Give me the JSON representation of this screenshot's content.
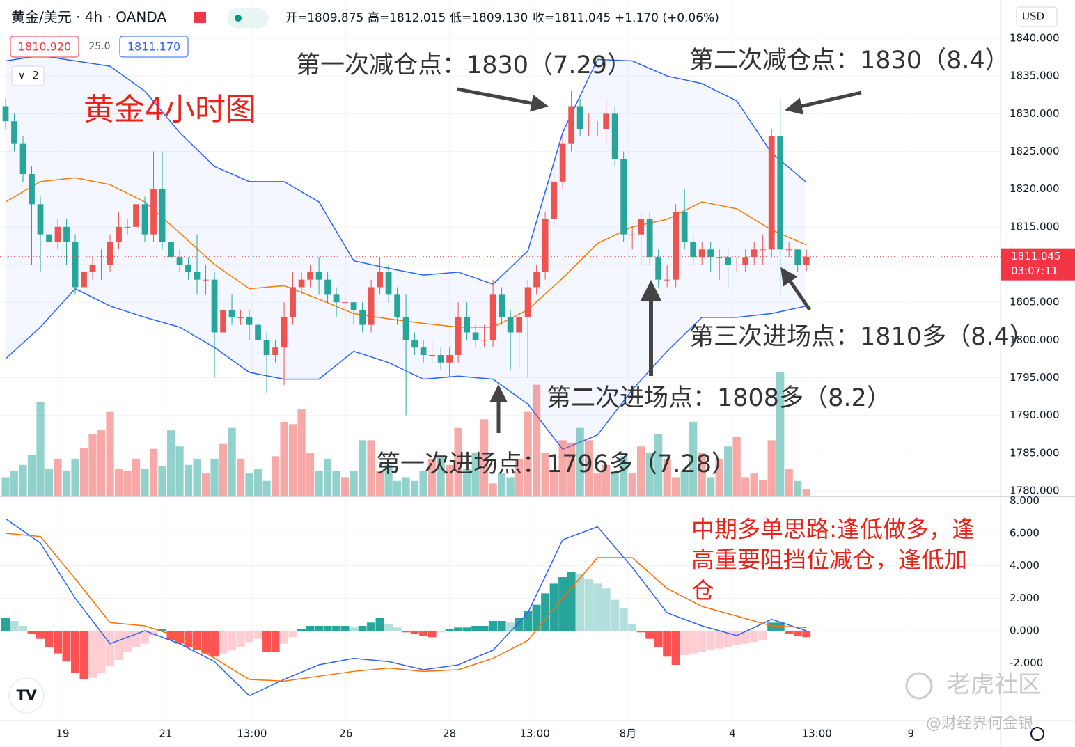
{
  "header": {
    "symbol": "黄金/美元 · 4h · OANDA",
    "ohlc": [
      "开=1809.875",
      "高=1812.015",
      "低=1809.130",
      "收=1811.045",
      "+1.170 (+0.06%)"
    ],
    "bid": "1810.920",
    "spread": "25.0",
    "ask": "1811.170",
    "indicators_count": "2",
    "currency": "USD",
    "countdown": "03:07:11",
    "watermark": "老虎社区",
    "author": "@财经界何金银"
  },
  "chart_data": [
    {
      "type": "candlestick",
      "title": "黄金4小时图",
      "xlim": [
        -0.64,
        114.3
      ],
      "xticks": [
        {
          "value": 6.56,
          "label": "19"
        },
        {
          "value": 18.4,
          "label": "21"
        },
        {
          "value": 28.3,
          "label": "13:00"
        },
        {
          "value": 39.1,
          "label": "26"
        },
        {
          "value": 51,
          "label": "28"
        },
        {
          "value": 60.8,
          "label": "13:00"
        },
        {
          "value": 71.5,
          "label": "8月"
        },
        {
          "value": 83.5,
          "label": "4"
        },
        {
          "value": 93.2,
          "label": "13:00"
        },
        {
          "value": 104,
          "label": "9"
        }
      ],
      "ylim": [
        1779.35,
        1845.08
      ],
      "yticks": [
        {
          "value": 1840,
          "label": "1840.000"
        },
        {
          "value": 1835,
          "label": "1835.000"
        },
        {
          "value": 1830,
          "label": "1830.000"
        },
        {
          "value": 1825,
          "label": "1825.000"
        },
        {
          "value": 1820,
          "label": "1820.000"
        },
        {
          "value": 1815,
          "label": "1815.000"
        },
        {
          "value": 1810,
          "label": "1810.000"
        },
        {
          "value": 1805,
          "label": "1805.000"
        },
        {
          "value": 1800,
          "label": "1800.000"
        },
        {
          "value": 1795,
          "label": "1795.000"
        },
        {
          "value": 1790,
          "label": "1790.000"
        },
        {
          "value": 1785,
          "label": "1785.000"
        },
        {
          "value": 1780,
          "label": "1780.000"
        }
      ],
      "grid": true,
      "up_color": "#ef5350",
      "down_color": "#26a69a",
      "last_price": 1811.045,
      "open": [
        1831,
        1829,
        1826,
        1822,
        1818,
        1814,
        1813,
        1815,
        1813,
        1807,
        1809,
        1810,
        1810,
        1813,
        1815,
        1815,
        1818,
        1814,
        1820,
        1813,
        1811,
        1810,
        1809,
        1808,
        1808,
        1801,
        1804,
        1803,
        1803,
        1802,
        1800,
        1798,
        1799,
        1803,
        1807,
        1808,
        1809,
        1808,
        1806,
        1805,
        1805,
        1804,
        1802,
        1807,
        1809,
        1806,
        1803,
        1800,
        1799,
        1798,
        1798,
        1797,
        1798,
        1803,
        1801,
        1800,
        1800,
        1806,
        1803,
        1801,
        1803,
        1807,
        1809,
        1816,
        1821,
        1826,
        1831,
        1828,
        1828,
        1828,
        1830,
        1824,
        1814,
        1814,
        1816,
        1811,
        1808,
        1808,
        1817,
        1813,
        1811,
        1812,
        1811,
        1811,
        1810,
        1810,
        1811,
        1812,
        1812,
        1827,
        1812,
        1812,
        1810
      ],
      "high": [
        1832,
        1830,
        1827,
        1823,
        1819,
        1815,
        1816,
        1816,
        1814,
        1810,
        1811,
        1812,
        1814,
        1817,
        1816,
        1820,
        1819,
        1825,
        1825,
        1814,
        1812,
        1811,
        1814,
        1810,
        1809,
        1805,
        1806,
        1804,
        1804,
        1803,
        1801,
        1800,
        1805,
        1809,
        1809,
        1810,
        1811,
        1809,
        1807,
        1806,
        1805,
        1805,
        1808,
        1811,
        1810,
        1807,
        1806,
        1801,
        1800,
        1800,
        1799,
        1799,
        1805,
        1805,
        1802,
        1802,
        1808,
        1807,
        1804,
        1804,
        1808,
        1810,
        1817,
        1822,
        1827,
        1833,
        1832,
        1830,
        1829,
        1832,
        1831,
        1825,
        1815,
        1817,
        1817,
        1812,
        1810,
        1818,
        1820,
        1814,
        1813,
        1813,
        1812,
        1812,
        1811,
        1812,
        1813,
        1814,
        1828,
        1832,
        1813,
        1812,
        1812.015
      ],
      "low": [
        1828,
        1825,
        1821,
        1810,
        1809,
        1809,
        1812,
        1810,
        1806,
        1795,
        1808,
        1808,
        1809,
        1812,
        1814,
        1814,
        1813,
        1813,
        1812,
        1810,
        1809,
        1808,
        1806,
        1806,
        1795,
        1800,
        1802,
        1802,
        1800,
        1798,
        1793,
        1797,
        1794,
        1802,
        1806,
        1807,
        1806,
        1805,
        1803,
        1803,
        1802,
        1801,
        1801,
        1806,
        1805,
        1802,
        1790,
        1798,
        1797,
        1797,
        1796,
        1795,
        1797,
        1800,
        1799,
        1799,
        1799,
        1802,
        1796,
        1796,
        1795,
        1806,
        1808,
        1815,
        1820,
        1825,
        1827,
        1827,
        1827,
        1826,
        1823,
        1813,
        1812,
        1810,
        1810,
        1807,
        1807,
        1807,
        1812,
        1810,
        1810,
        1809,
        1808,
        1807,
        1809,
        1809,
        1810,
        1810,
        1811,
        1806,
        1811,
        1809,
        1809.13
      ],
      "close": [
        1829,
        1826,
        1822,
        1818,
        1814,
        1813,
        1815,
        1813,
        1807,
        1809,
        1810,
        1810,
        1813,
        1815,
        1815,
        1818,
        1814,
        1820,
        1813,
        1811,
        1810,
        1809,
        1808,
        1808,
        1801,
        1804,
        1803,
        1803,
        1802,
        1800,
        1798,
        1799,
        1803,
        1807,
        1808,
        1809,
        1808,
        1806,
        1805,
        1805,
        1804,
        1802,
        1807,
        1809,
        1806,
        1803,
        1800,
        1799,
        1798,
        1798,
        1797,
        1798,
        1803,
        1801,
        1800,
        1800,
        1806,
        1803,
        1801,
        1803,
        1807,
        1809,
        1816,
        1821,
        1826,
        1831,
        1828,
        1828,
        1828,
        1830,
        1824,
        1814,
        1814,
        1816,
        1811,
        1808,
        1808,
        1817,
        1813,
        1811,
        1812,
        1811,
        1811,
        1810,
        1810,
        1811,
        1812,
        1812,
        1827,
        1812,
        1812,
        1810,
        1811.045
      ],
      "volume": [
        15,
        20,
        25,
        33,
        76,
        22,
        30,
        20,
        30,
        39,
        50,
        53,
        68,
        22,
        20,
        30,
        22,
        38,
        24,
        53,
        40,
        25,
        30,
        18,
        30,
        42,
        55,
        30,
        18,
        22,
        12,
        32,
        60,
        58,
        70,
        35,
        20,
        30,
        20,
        15,
        20,
        45,
        45,
        20,
        25,
        12,
        15,
        12,
        20,
        30,
        33,
        25,
        55,
        22,
        35,
        62,
        10,
        18,
        15,
        30,
        68,
        90,
        35,
        20,
        45,
        43,
        55,
        45,
        18,
        25,
        20,
        32,
        18,
        40,
        35,
        50,
        30,
        15,
        20,
        60,
        35,
        15,
        30,
        40,
        48,
        15,
        18,
        13,
        45,
        100,
        22,
        12,
        5
      ],
      "bands": {
        "x": [
          0,
          4,
          8,
          12,
          16,
          20,
          24,
          28,
          32,
          36,
          40,
          44,
          48,
          52,
          56,
          60,
          64,
          68,
          72,
          76,
          80,
          84,
          88,
          92
        ],
        "upper": [
          1837,
          1837.7,
          1837,
          1836.3,
          1833,
          1827.5,
          1823,
          1821,
          1821,
          1818.3,
          1810.5,
          1809.5,
          1808.6,
          1809,
          1807.4,
          1811.8,
          1827.5,
          1837.2,
          1837,
          1835,
          1834,
          1831.7,
          1824.8,
          1820.9
        ],
        "middle": [
          1818.3,
          1821,
          1821.5,
          1820.6,
          1818.3,
          1814.2,
          1810,
          1806.8,
          1807.2,
          1805.4,
          1803.5,
          1802.8,
          1802.2,
          1801.7,
          1801.7,
          1804,
          1808.2,
          1812.8,
          1815,
          1816,
          1818.3,
          1817.4,
          1814.6,
          1812.6
        ],
        "lower": [
          1797.5,
          1801.7,
          1806.8,
          1804.5,
          1803,
          1801.7,
          1799,
          1795.7,
          1794.8,
          1794.8,
          1798.5,
          1797,
          1794.8,
          1795.2,
          1794.8,
          1791.5,
          1785.5,
          1787.4,
          1793.4,
          1798.5,
          1803,
          1803,
          1803.5,
          1804.5
        ],
        "band_color": "#2962ff",
        "middle_color": "#f57c00"
      },
      "annotations": [
        "第一次减仓点：1830（7.29）",
        "第二次减仓点：1830（8.4）",
        "第三次进场点：1810多（8.4）",
        "第二次进场点：1808多（8.2）",
        "第一次进场点：1796多（7.28）"
      ]
    },
    {
      "type": "macd",
      "note": [
        "中期多单思路:逢低做多，逢",
        "高重要阻挡位减仓，逢低加",
        "仓"
      ],
      "ylim": [
        -5.53,
        8.23
      ],
      "yticks": [
        {
          "value": 8,
          "label": "8.000"
        },
        {
          "value": 6,
          "label": "6.000"
        },
        {
          "value": 4,
          "label": "4.000"
        },
        {
          "value": 2,
          "label": "2.000"
        },
        {
          "value": 0,
          "label": "0.000"
        },
        {
          "value": -2,
          "label": "-2.000"
        }
      ],
      "histogram": [
        0.8,
        0.6,
        0.3,
        -0.2,
        -0.5,
        -1.0,
        -1.4,
        -1.9,
        -2.6,
        -3.0,
        -2.9,
        -2.6,
        -2.2,
        -1.8,
        -1.3,
        -1.0,
        -0.8,
        -0.3,
        0.1,
        -0.6,
        -0.8,
        -1.0,
        -1.2,
        -1.4,
        -1.6,
        -1.4,
        -1.2,
        -1.0,
        -0.7,
        -0.5,
        -1.3,
        -1.3,
        -0.8,
        -0.4,
        0.1,
        0.3,
        0.3,
        0.3,
        0.3,
        0.3,
        0.2,
        0.3,
        0.5,
        0.8,
        0.4,
        0.2,
        -0.1,
        -0.2,
        -0.3,
        -0.4,
        -0.1,
        0.1,
        0.2,
        0.2,
        0.3,
        0.3,
        0.6,
        0.6,
        0.5,
        0.8,
        1.2,
        1.6,
        2.3,
        2.9,
        3.3,
        3.6,
        3.5,
        3.2,
        2.9,
        2.6,
        1.9,
        1.4,
        0.4,
        -0.1,
        -0.5,
        -1.0,
        -1.6,
        -2.1,
        -1.5,
        -1.4,
        -1.3,
        -1.2,
        -1.1,
        -1.0,
        -0.9,
        -0.8,
        -0.7,
        -0.6,
        0.5,
        0.5,
        -0.2,
        -0.3,
        -0.4
      ],
      "x": [
        0,
        4,
        8,
        12,
        16,
        20,
        24,
        28,
        32,
        36,
        40,
        44,
        48,
        52,
        56,
        60,
        64,
        68,
        72,
        76,
        80,
        84,
        88,
        92
      ],
      "macd": [
        6.9,
        5.4,
        2,
        -0.8,
        0,
        -0.8,
        -1.9,
        -4,
        -3,
        -2.1,
        -1.7,
        -1.9,
        -2.4,
        -2.1,
        -1.2,
        1.1,
        5.6,
        6.4,
        3.9,
        1.1,
        0.3,
        -0.3,
        0.7,
        0
      ],
      "signal": [
        6,
        5.8,
        3.2,
        0.5,
        0.3,
        -0.4,
        -1.7,
        -3,
        -3.1,
        -2.8,
        -2.5,
        -2.3,
        -2.5,
        -2.4,
        -1.7,
        -0.6,
        2,
        4.5,
        4.5,
        2.6,
        1.5,
        0.9,
        0.3,
        0.2
      ],
      "macd_color": "#2962ff",
      "signal_color": "#ff6d00"
    }
  ]
}
